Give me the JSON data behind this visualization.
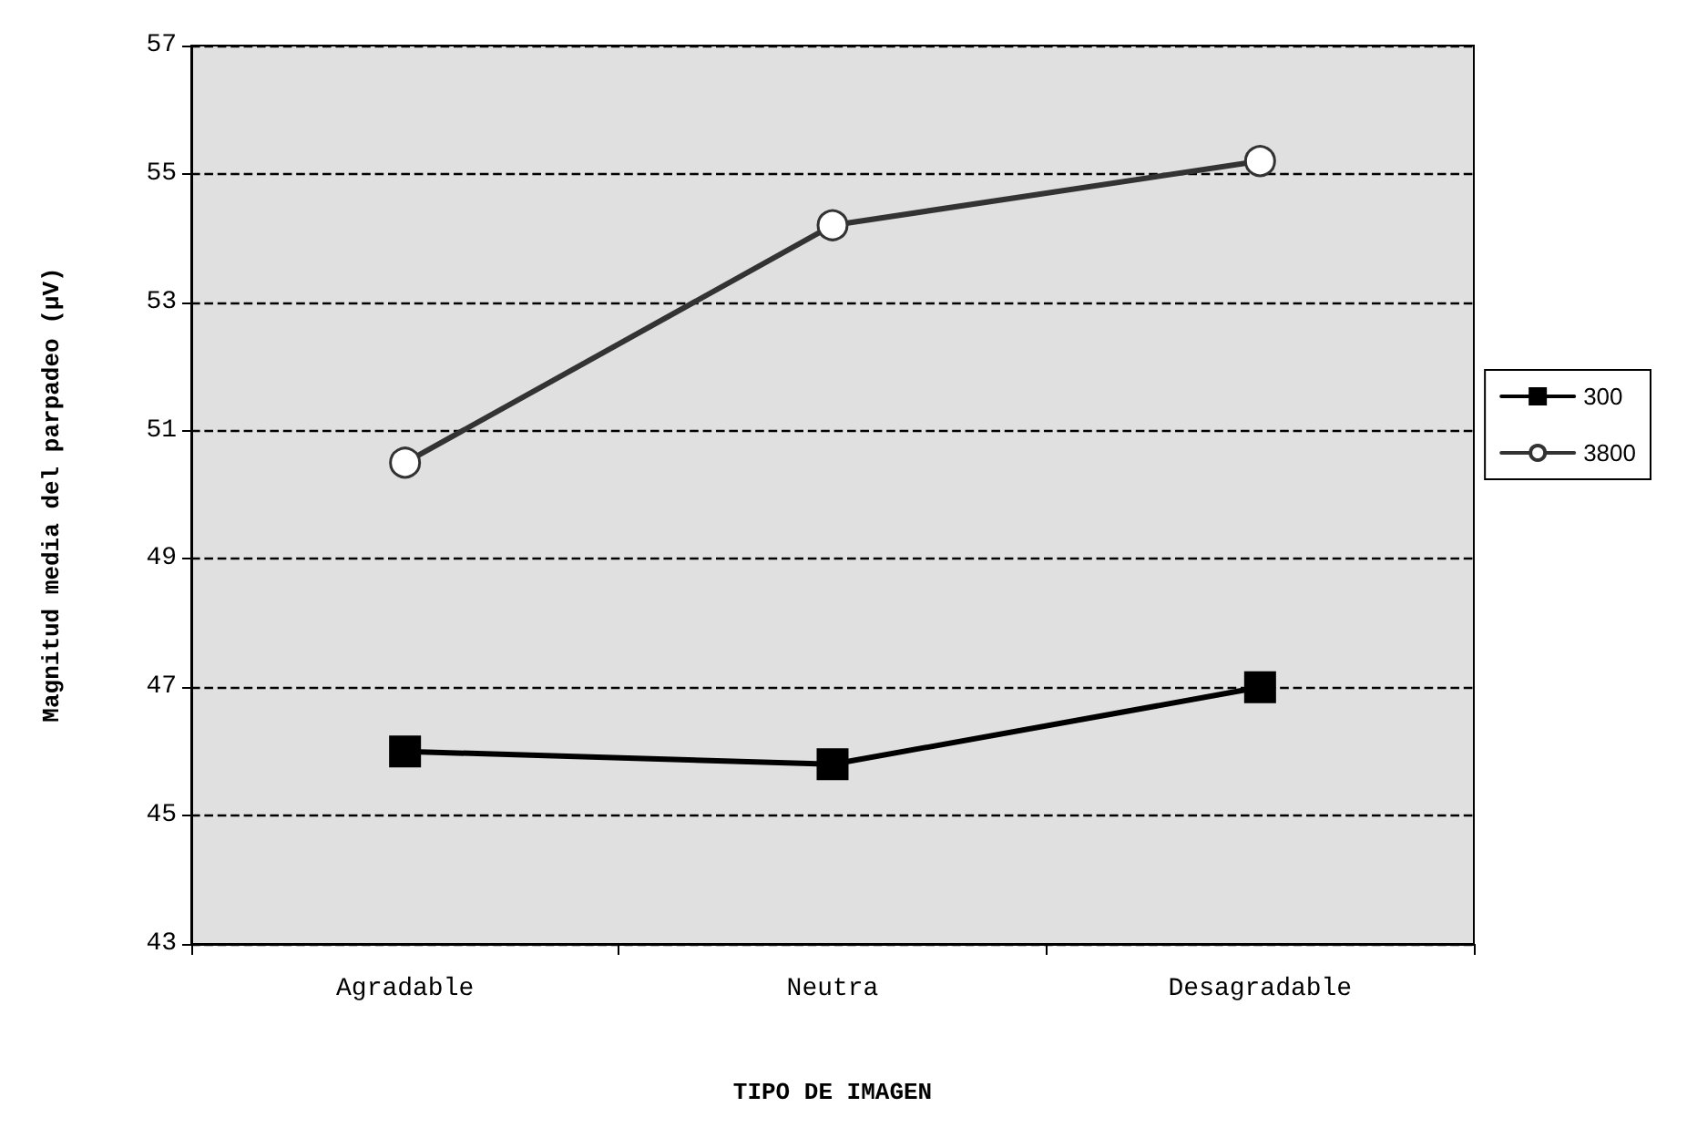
{
  "chart_data": {
    "type": "line",
    "xlabel": "TIPO DE IMAGEN",
    "ylabel": "Magnitud media del parpadeo (µV)",
    "categories": [
      "Agradable",
      "Neutra",
      "Desagradable"
    ],
    "series": [
      {
        "name": "300",
        "color": "#000000",
        "marker": "square",
        "values": [
          46.0,
          45.8,
          47.0
        ]
      },
      {
        "name": "3800",
        "color": "#333333",
        "marker": "circle",
        "values": [
          50.5,
          54.2,
          55.2
        ]
      }
    ],
    "ylim": [
      43,
      57
    ],
    "yticks": [
      43,
      45,
      47,
      49,
      51,
      53,
      55,
      57
    ],
    "grid": "y",
    "legend": "right",
    "line_style": "solid"
  }
}
